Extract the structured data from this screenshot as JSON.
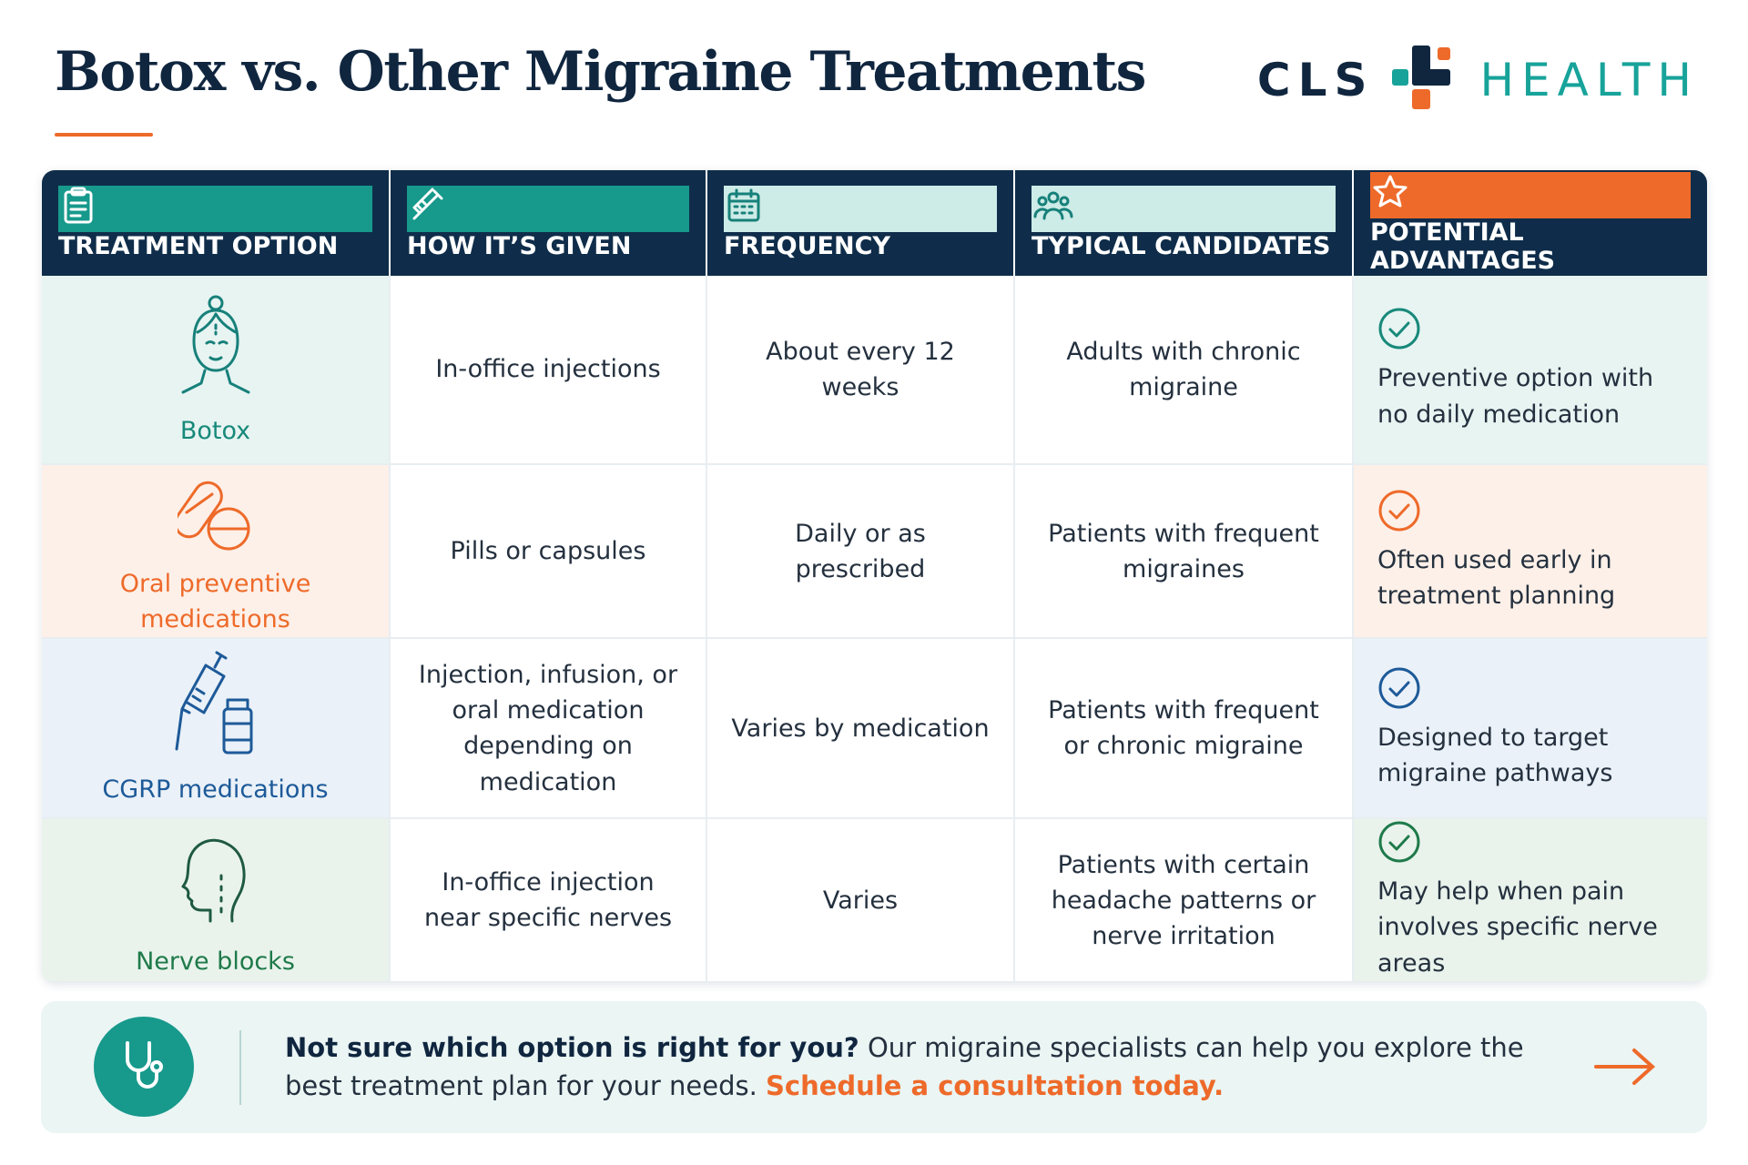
{
  "header": {
    "title": "Botox vs. Other Migraine Treatments",
    "logo": {
      "left": "CLS",
      "right": "HEALTH"
    }
  },
  "table": {
    "columns": [
      "TREATMENT OPTION",
      "HOW IT’S GIVEN",
      "FREQUENCY",
      "TYPICAL CANDIDATES",
      "POTENTIAL ADVANTAGES"
    ],
    "rows": [
      [
        "Botox",
        "In-office injections",
        "About every 12 weeks",
        "Adults with chronic migraine",
        "Preventive option with no daily medication"
      ],
      [
        "Oral preventive medications",
        "Pills or capsules",
        "Daily or as prescribed",
        "Patients with frequent migraines",
        "Often used early in treatment planning"
      ],
      [
        "CGRP medications",
        "Injection, infusion, or oral medication depending on medication",
        "Varies by medication",
        "Patients with frequent or chronic migraine",
        "Designed to target migraine pathways"
      ],
      [
        "Nerve blocks",
        "In-office injection near specific nerves",
        "Varies",
        "Patients with certain headache patterns or nerve irritation",
        "May help when pain involves specific nerve areas"
      ]
    ]
  },
  "footer": {
    "question": "Not sure which option is right for you?",
    "text": "Our migraine specialists can help you explore the best treatment plan for your needs.",
    "link": "Schedule a consultation today."
  }
}
